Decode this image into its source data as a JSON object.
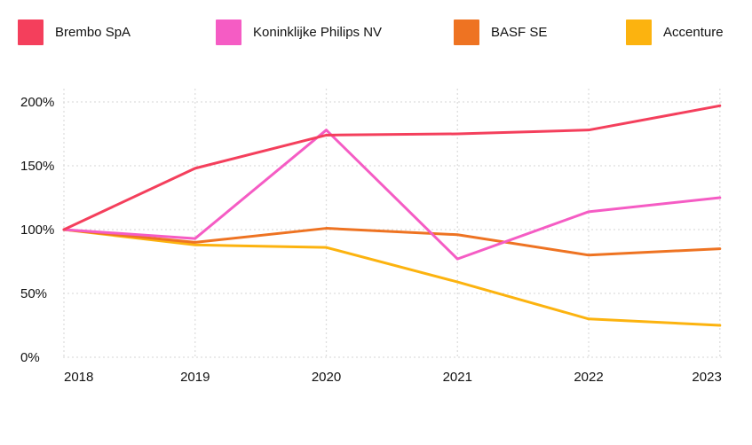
{
  "chart_data": {
    "type": "line",
    "title": "",
    "subtitle": "",
    "xlabel": "",
    "ylabel": "",
    "categories": [
      "2018",
      "2019",
      "2020",
      "2021",
      "2022",
      "2023"
    ],
    "series": [
      {
        "name": "Brembo SpA",
        "color": "#F43F5C",
        "values": [
          100,
          148,
          174,
          175,
          178,
          197
        ]
      },
      {
        "name": "Koninklijke Philips NV",
        "color": "#F55CC4",
        "values": [
          100,
          93,
          178,
          77,
          114,
          125
        ]
      },
      {
        "name": "BASF SE",
        "color": "#EE7322",
        "values": [
          100,
          90,
          101,
          96,
          80,
          85
        ]
      },
      {
        "name": "Accenture",
        "color": "#FCB30F",
        "values": [
          100,
          88,
          86,
          59,
          30,
          25
        ]
      }
    ],
    "y_ticks": [
      {
        "label": "200%",
        "value": 200
      },
      {
        "label": "150%",
        "value": 150
      },
      {
        "label": "100%",
        "value": 100
      },
      {
        "label": "50%",
        "value": 50
      },
      {
        "label": "0%",
        "value": 0
      }
    ],
    "ylim": [
      0,
      200
    ],
    "grid": "dashed",
    "legend_position": "top"
  },
  "colors": {
    "background": "#FFFFFF",
    "grid": "#DEDEDE",
    "text": "#111111"
  }
}
